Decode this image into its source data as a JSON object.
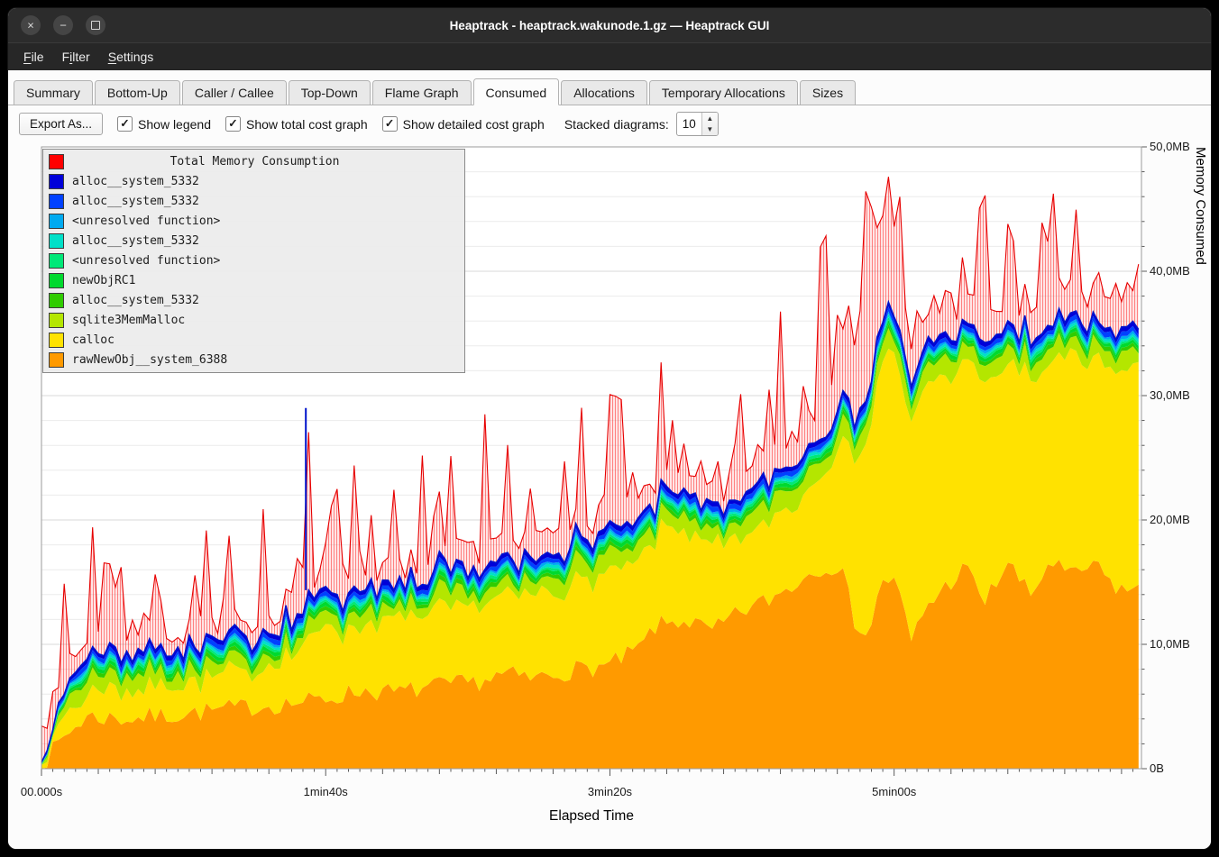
{
  "window": {
    "title": "Heaptrack - heaptrack.wakunode.1.gz — Heaptrack GUI",
    "controls": [
      "close",
      "minimize",
      "maximize"
    ]
  },
  "menu": {
    "items": [
      {
        "label": "File",
        "mnemonic_index": 0
      },
      {
        "label": "Filter",
        "mnemonic_index": 1
      },
      {
        "label": "Settings",
        "mnemonic_index": 0
      }
    ]
  },
  "tabs": {
    "active": "Consumed",
    "items": [
      "Summary",
      "Bottom-Up",
      "Caller / Callee",
      "Top-Down",
      "Flame Graph",
      "Consumed",
      "Allocations",
      "Temporary Allocations",
      "Sizes"
    ]
  },
  "toolbar": {
    "export_label": "Export As...",
    "checkboxes": [
      {
        "label": "Show legend",
        "checked": true
      },
      {
        "label": "Show total cost graph",
        "checked": true
      },
      {
        "label": "Show detailed cost graph",
        "checked": true
      }
    ],
    "stacked_label": "Stacked diagrams:",
    "stacked_value": "10"
  },
  "chart_data": {
    "type": "area",
    "title": "Total Memory Consumption",
    "xlabel": "Elapsed Time",
    "ylabel": "Memory Consumed",
    "xlim": [
      0,
      387
    ],
    "ylim": [
      0,
      50
    ],
    "x_ticks": [
      {
        "t": 0,
        "label": "00.000s"
      },
      {
        "t": 100,
        "label": "1min40s"
      },
      {
        "t": 200,
        "label": "3min20s"
      },
      {
        "t": 300,
        "label": "5min00s"
      }
    ],
    "y_ticks": [
      {
        "v": 0,
        "label": "0B"
      },
      {
        "v": 10,
        "label": "10,0MB"
      },
      {
        "v": 20,
        "label": "20,0MB"
      },
      {
        "v": 30,
        "label": "30,0MB"
      },
      {
        "v": 40,
        "label": "40,0MB"
      },
      {
        "v": 50,
        "label": "50,0MB"
      }
    ],
    "grid_step": 2,
    "sample_step": 2,
    "minor_tick_step": 4,
    "seed": 7,
    "total": {
      "label": "Total Memory Consumption",
      "color": "#ff0000",
      "stroke": "#e60000",
      "noise": 0.5,
      "spike_prob": 0.5,
      "spike_pow": 1.3,
      "red_max": 49,
      "gap_keyframes": [
        [
          0,
          0.6
        ],
        [
          10,
          1.6
        ],
        [
          30,
          1.2
        ],
        [
          60,
          1.0
        ],
        [
          100,
          1.3
        ],
        [
          150,
          1.5
        ],
        [
          200,
          1.6
        ],
        [
          250,
          1.6
        ],
        [
          275,
          2.0
        ],
        [
          283,
          5
        ],
        [
          288,
          8
        ],
        [
          295,
          9
        ],
        [
          300,
          7
        ],
        [
          305,
          3
        ],
        [
          312,
          2.2
        ],
        [
          387,
          2.4
        ]
      ],
      "spike_amp_keyframes": [
        [
          0,
          5
        ],
        [
          15,
          10
        ],
        [
          35,
          8
        ],
        [
          55,
          7
        ],
        [
          75,
          16
        ],
        [
          85,
          14
        ],
        [
          93,
          18
        ],
        [
          105,
          9
        ],
        [
          128,
          13
        ],
        [
          148,
          11
        ],
        [
          168,
          13
        ],
        [
          185,
          18
        ],
        [
          200,
          11
        ],
        [
          214,
          13
        ],
        [
          230,
          9
        ],
        [
          244,
          11
        ],
        [
          258,
          13
        ],
        [
          272,
          15
        ],
        [
          285,
          14
        ],
        [
          295,
          12
        ],
        [
          306,
          11
        ],
        [
          316,
          9
        ],
        [
          330,
          11
        ],
        [
          344,
          9
        ],
        [
          358,
          11
        ],
        [
          372,
          9
        ],
        [
          387,
          9
        ]
      ]
    },
    "blue_spikes": [
      [
        93,
        29
      ]
    ],
    "layers": [
      {
        "name": "rawNewObj__system_6388",
        "color": "#ff9a00",
        "noise": 0.8,
        "keyframes": [
          [
            0,
            0.2
          ],
          [
            8,
            2.6
          ],
          [
            16,
            4.2
          ],
          [
            30,
            4.0
          ],
          [
            50,
            4.4
          ],
          [
            70,
            4.9
          ],
          [
            90,
            5.3
          ],
          [
            100,
            5.6
          ],
          [
            112,
            6.3
          ],
          [
            125,
            6.1
          ],
          [
            138,
            6.6
          ],
          [
            152,
            6.9
          ],
          [
            163,
            7.6
          ],
          [
            172,
            7.2
          ],
          [
            186,
            7.9
          ],
          [
            200,
            8.3
          ],
          [
            210,
            9.6
          ],
          [
            216,
            11.4
          ],
          [
            226,
            12.0
          ],
          [
            236,
            11.0
          ],
          [
            246,
            12.6
          ],
          [
            256,
            13.6
          ],
          [
            266,
            15.0
          ],
          [
            273,
            16.2
          ],
          [
            281,
            16.4
          ],
          [
            286,
            12.0
          ],
          [
            291,
            10.6
          ],
          [
            296,
            15.4
          ],
          [
            301,
            14.8
          ],
          [
            306,
            10.2
          ],
          [
            311,
            13.0
          ],
          [
            318,
            14.6
          ],
          [
            325,
            16.2
          ],
          [
            332,
            13.4
          ],
          [
            340,
            16.6
          ],
          [
            348,
            13.8
          ],
          [
            355,
            16.8
          ],
          [
            362,
            15.4
          ],
          [
            370,
            16.4
          ],
          [
            378,
            14.6
          ],
          [
            387,
            14.2
          ]
        ]
      },
      {
        "name": "calloc",
        "color": "#ffe200",
        "noise": 0.5,
        "keyframes": [
          [
            0,
            0.4
          ],
          [
            10,
            1.6
          ],
          [
            20,
            2.1
          ],
          [
            40,
            2.3
          ],
          [
            60,
            2.6
          ],
          [
            80,
            3.1
          ],
          [
            95,
            4.6
          ],
          [
            100,
            5.9
          ],
          [
            106,
            5.1
          ],
          [
            116,
            5.6
          ],
          [
            130,
            5.9
          ],
          [
            146,
            6.1
          ],
          [
            160,
            6.3
          ],
          [
            176,
            6.6
          ],
          [
            190,
            7.1
          ],
          [
            200,
            7.4
          ],
          [
            212,
            7.0
          ],
          [
            222,
            7.6
          ],
          [
            236,
            6.6
          ],
          [
            246,
            5.9
          ],
          [
            256,
            6.4
          ],
          [
            266,
            6.0
          ],
          [
            273,
            7.4
          ],
          [
            279,
            9.0
          ],
          [
            286,
            13.2
          ],
          [
            292,
            16.2
          ],
          [
            298,
            18.6
          ],
          [
            304,
            17.0
          ],
          [
            310,
            18.0
          ],
          [
            316,
            17.4
          ],
          [
            323,
            16.0
          ],
          [
            331,
            17.6
          ],
          [
            339,
            16.1
          ],
          [
            346,
            17.1
          ],
          [
            353,
            16.0
          ],
          [
            361,
            17.6
          ],
          [
            369,
            16.4
          ],
          [
            376,
            17.0
          ],
          [
            387,
            18.2
          ]
        ]
      },
      {
        "name": "sqlite3MemMalloc",
        "color": "#b4e600",
        "noise": 0.55,
        "keyframes": [
          [
            0,
            0.1
          ],
          [
            12,
            1.1
          ],
          [
            40,
            1.0
          ],
          [
            100,
            1.0
          ],
          [
            200,
            1.2
          ],
          [
            300,
            1.3
          ],
          [
            387,
            1.2
          ]
        ]
      },
      {
        "name": "alloc__system_5332",
        "color": "#30cc00",
        "noise": 0.1,
        "keyframes": [
          [
            0,
            0.05
          ],
          [
            15,
            0.3
          ],
          [
            387,
            0.3
          ]
        ]
      },
      {
        "name": "newObjRC1",
        "color": "#00d92e",
        "noise": 0.1,
        "keyframes": [
          [
            0,
            0.05
          ],
          [
            15,
            0.3
          ],
          [
            387,
            0.3
          ]
        ]
      },
      {
        "name": "<unresolved function>",
        "color": "#00e878",
        "noise": 0.08,
        "keyframes": [
          [
            0,
            0.03
          ],
          [
            15,
            0.2
          ],
          [
            387,
            0.2
          ]
        ]
      },
      {
        "name": "alloc__system_5332",
        "color": "#00e0c8",
        "noise": 0.08,
        "keyframes": [
          [
            0,
            0.03
          ],
          [
            15,
            0.2
          ],
          [
            387,
            0.2
          ]
        ]
      },
      {
        "name": "<unresolved function>",
        "color": "#00aaf0",
        "noise": 0.08,
        "keyframes": [
          [
            0,
            0.03
          ],
          [
            15,
            0.2
          ],
          [
            387,
            0.2
          ]
        ]
      },
      {
        "name": "alloc__system_5332",
        "color": "#0041ff",
        "noise": 0.1,
        "keyframes": [
          [
            0,
            0.05
          ],
          [
            15,
            0.35
          ],
          [
            387,
            0.35
          ]
        ]
      },
      {
        "name": "alloc__system_5332",
        "color": "#0000d9",
        "noise": 0.1,
        "keyframes": [
          [
            0,
            0.05
          ],
          [
            15,
            0.35
          ],
          [
            387,
            0.35
          ]
        ]
      }
    ]
  }
}
